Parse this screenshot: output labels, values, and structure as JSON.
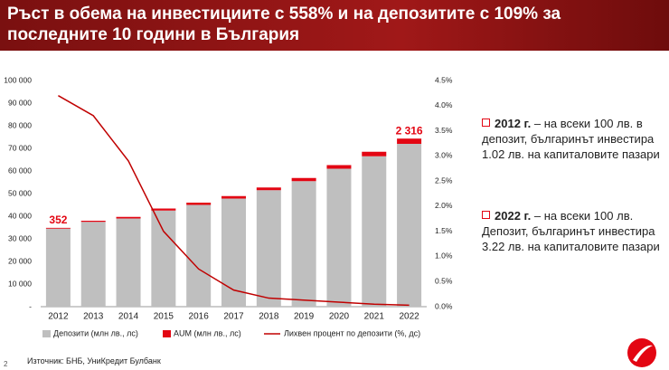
{
  "chart_data": {
    "type": "bar",
    "stacked": true,
    "title": "Ръст в обема на инвестициите с 558% и на депозитите с 109% за последните 10 години в България",
    "categories": [
      "2012",
      "2013",
      "2014",
      "2015",
      "2016",
      "2017",
      "2018",
      "2019",
      "2020",
      "2021",
      "2022"
    ],
    "series": [
      {
        "name": "Депозити (млн лв., лс)",
        "color": "#bfbfbf",
        "values": [
          34500,
          37500,
          39000,
          42500,
          45000,
          47800,
          51500,
          55500,
          61000,
          66500,
          72000
        ]
      },
      {
        "name": "AUM (млн лв., лс)",
        "color": "#e30613",
        "values": [
          352,
          500,
          700,
          900,
          1000,
          1100,
          1200,
          1400,
          1600,
          2000,
          2316
        ],
        "value_labels": [
          "352",
          null,
          null,
          null,
          null,
          null,
          null,
          null,
          null,
          null,
          "2 316"
        ]
      },
      {
        "name": "Лихвен процент по депозити (%, дс)",
        "color": "#c00000",
        "type": "line",
        "axis": "y2",
        "values": [
          4.2,
          3.8,
          2.9,
          1.5,
          0.75,
          0.33,
          0.17,
          0.13,
          0.09,
          0.05,
          0.03
        ]
      }
    ],
    "ylim": [
      0,
      100000
    ],
    "yticks": [
      {
        "value": 0,
        "label": "-"
      },
      {
        "value": 10000,
        "label": "10 000"
      },
      {
        "value": 20000,
        "label": "20 000"
      },
      {
        "value": 30000,
        "label": "30 000"
      },
      {
        "value": 40000,
        "label": "40 000"
      },
      {
        "value": 50000,
        "label": "50 000"
      },
      {
        "value": 60000,
        "label": "60 000"
      },
      {
        "value": 70000,
        "label": "70 000"
      },
      {
        "value": 80000,
        "label": "80 000"
      },
      {
        "value": 90000,
        "label": "90 000"
      },
      {
        "value": 100000,
        "label": "100 000"
      }
    ],
    "y2lim": [
      0,
      4.5
    ],
    "y2ticks": [
      {
        "value": 0,
        "label": "0.0%"
      },
      {
        "value": 0.5,
        "label": "0.5%"
      },
      {
        "value": 1,
        "label": "1.0%"
      },
      {
        "value": 1.5,
        "label": "1.5%"
      },
      {
        "value": 2,
        "label": "2.0%"
      },
      {
        "value": 2.5,
        "label": "2.5%"
      },
      {
        "value": 3,
        "label": "3.0%"
      },
      {
        "value": 3.5,
        "label": "3.5%"
      },
      {
        "value": 4,
        "label": "4.0%"
      },
      {
        "value": 4.5,
        "label": "4.5%"
      }
    ],
    "grid": false,
    "legend": "bottom"
  },
  "notes": [
    {
      "bold": "2012 г.",
      "text": "– на всеки 100 лв. в депозит, българинът инвестира 1.02 лв. на капиталовите пазари"
    },
    {
      "bold": "2022 г.",
      "text": "– на всеки 100 лв. Депозит, българинът инвестира 3.22 лв. на капиталовите пазари"
    }
  ],
  "source": "Източник: БНБ, УниКредит Булбанк",
  "page_number": "2"
}
